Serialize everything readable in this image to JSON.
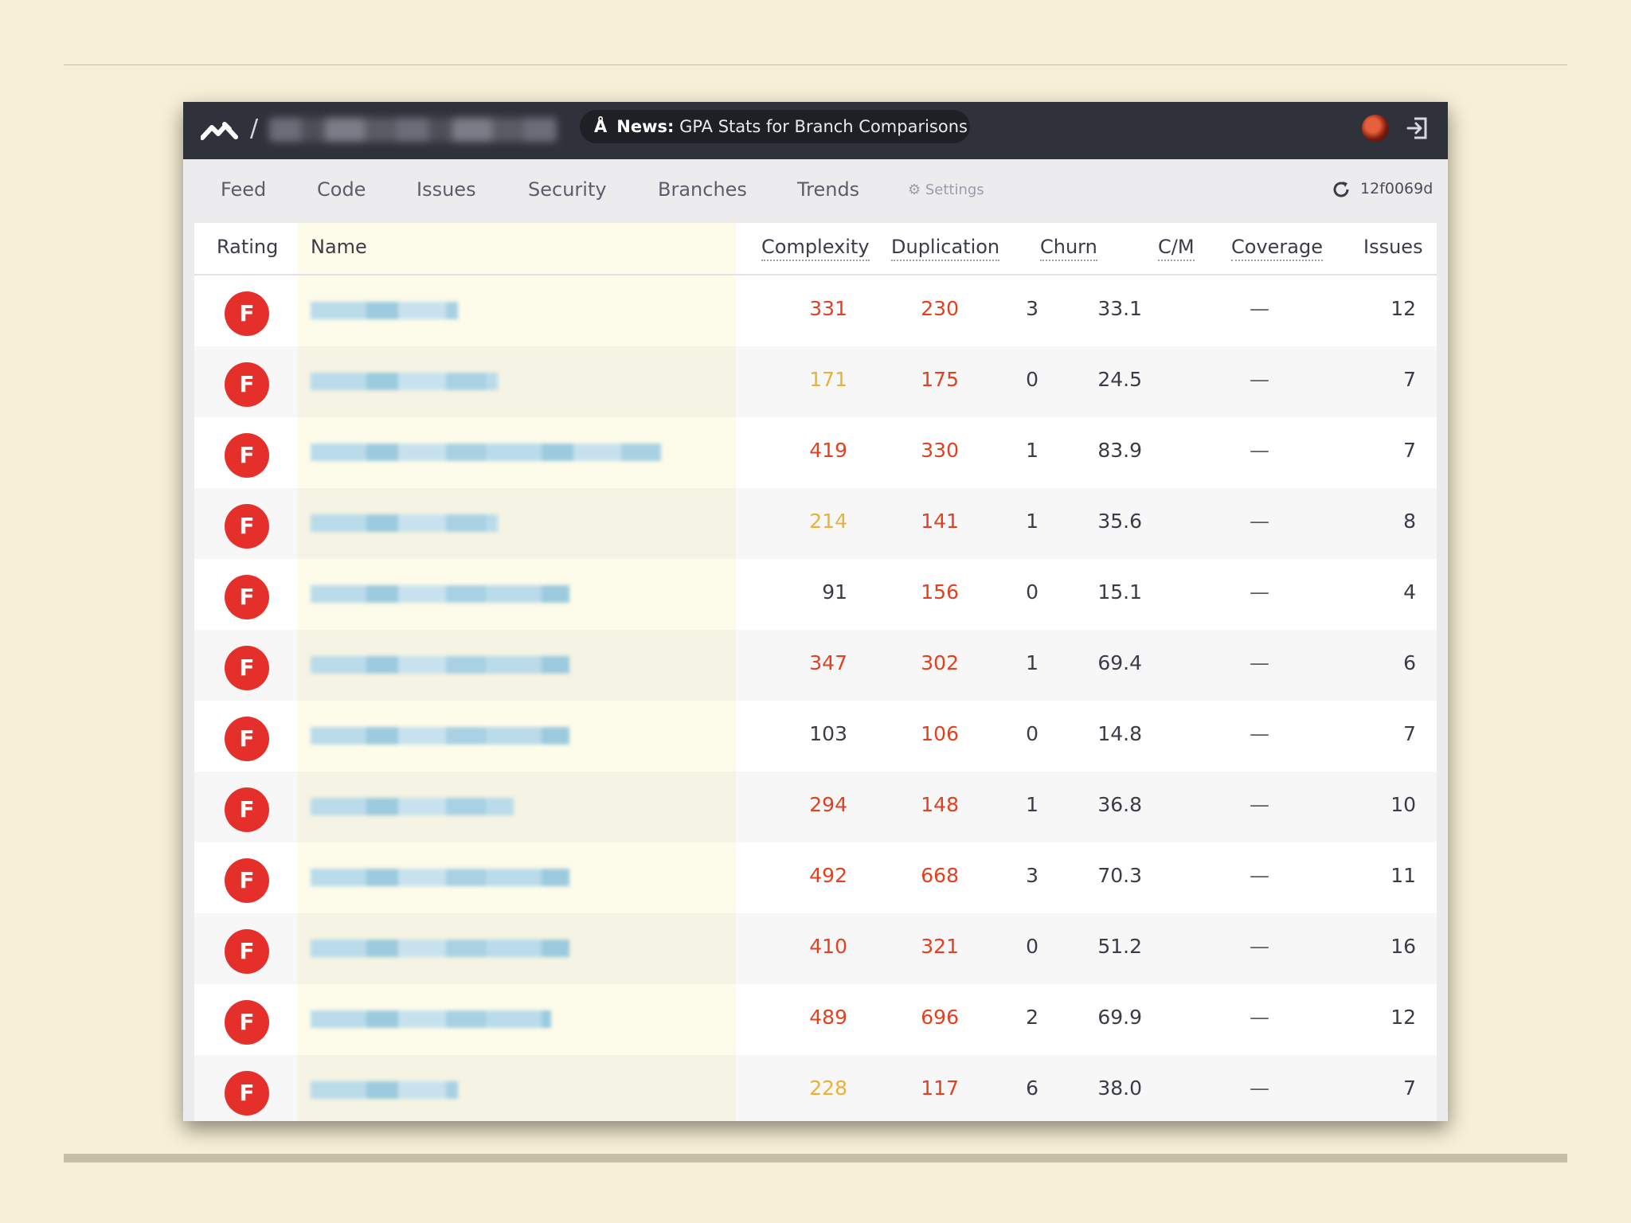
{
  "topbar": {
    "separator": "/",
    "news_label": "News:",
    "news_text": "GPA Stats for Branch Comparisons"
  },
  "nav": {
    "items": [
      "Feed",
      "Code",
      "Issues",
      "Security",
      "Branches",
      "Trends"
    ],
    "settings": "⚙ Settings",
    "commit_sha": "12f0069d"
  },
  "colors": {
    "grade_f": "#e52f2a",
    "metric_bad": "#e2401f",
    "metric_warn": "#e8b13a"
  },
  "table": {
    "headers": [
      "Rating",
      "Name",
      "Complexity",
      "Duplication",
      "Churn",
      "C/M",
      "Coverage",
      "Issues"
    ],
    "rows": [
      {
        "rating": "F",
        "complexity": "331",
        "complexity_level": "red",
        "duplication": "230",
        "duplication_level": "red",
        "churn": "3",
        "cm": "33.1",
        "coverage": "—",
        "issues": "12"
      },
      {
        "rating": "F",
        "complexity": "171",
        "complexity_level": "orange",
        "duplication": "175",
        "duplication_level": "red",
        "churn": "0",
        "cm": "24.5",
        "coverage": "—",
        "issues": "7"
      },
      {
        "rating": "F",
        "complexity": "419",
        "complexity_level": "red",
        "duplication": "330",
        "duplication_level": "red",
        "churn": "1",
        "cm": "83.9",
        "coverage": "—",
        "issues": "7"
      },
      {
        "rating": "F",
        "complexity": "214",
        "complexity_level": "orange",
        "duplication": "141",
        "duplication_level": "red",
        "churn": "1",
        "cm": "35.6",
        "coverage": "—",
        "issues": "8"
      },
      {
        "rating": "F",
        "complexity": "91",
        "complexity_level": "normal",
        "duplication": "156",
        "duplication_level": "red",
        "churn": "0",
        "cm": "15.1",
        "coverage": "—",
        "issues": "4"
      },
      {
        "rating": "F",
        "complexity": "347",
        "complexity_level": "red",
        "duplication": "302",
        "duplication_level": "red",
        "churn": "1",
        "cm": "69.4",
        "coverage": "—",
        "issues": "6"
      },
      {
        "rating": "F",
        "complexity": "103",
        "complexity_level": "normal",
        "duplication": "106",
        "duplication_level": "red",
        "churn": "0",
        "cm": "14.8",
        "coverage": "—",
        "issues": "7"
      },
      {
        "rating": "F",
        "complexity": "294",
        "complexity_level": "red",
        "duplication": "148",
        "duplication_level": "red",
        "churn": "1",
        "cm": "36.8",
        "coverage": "—",
        "issues": "10"
      },
      {
        "rating": "F",
        "complexity": "492",
        "complexity_level": "red",
        "duplication": "668",
        "duplication_level": "red",
        "churn": "3",
        "cm": "70.3",
        "coverage": "—",
        "issues": "11"
      },
      {
        "rating": "F",
        "complexity": "410",
        "complexity_level": "red",
        "duplication": "321",
        "duplication_level": "red",
        "churn": "0",
        "cm": "51.2",
        "coverage": "—",
        "issues": "16"
      },
      {
        "rating": "F",
        "complexity": "489",
        "complexity_level": "red",
        "duplication": "696",
        "duplication_level": "red",
        "churn": "2",
        "cm": "69.9",
        "coverage": "—",
        "issues": "12"
      },
      {
        "rating": "F",
        "complexity": "228",
        "complexity_level": "orange",
        "duplication": "117",
        "duplication_level": "red",
        "churn": "6",
        "cm": "38.0",
        "coverage": "—",
        "issues": "7"
      }
    ]
  }
}
